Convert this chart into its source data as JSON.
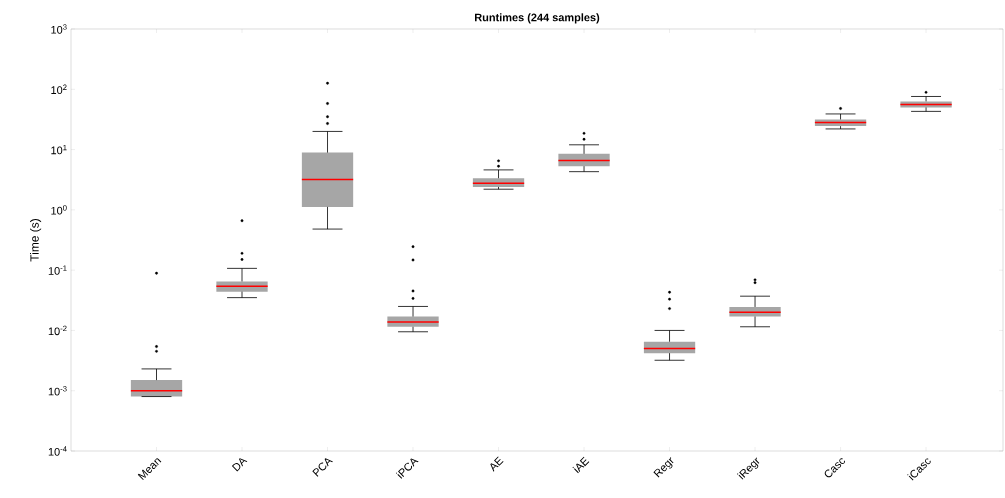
{
  "chart_data": {
    "type": "box",
    "title": "Runtimes (244 samples)",
    "ylabel": "Time (s)",
    "log": "y",
    "categories": [
      "Mean",
      "DA",
      "PCA",
      "iPCA",
      "AE",
      "iAE",
      "Regr",
      "iRegr",
      "Casc",
      "iCasc"
    ],
    "ylim": [
      0.0001,
      1000
    ],
    "yticks": [
      {
        "value": 0.0001,
        "label": "10$^{-4}$"
      },
      {
        "value": 0.001,
        "label": "10$^{-3}$"
      },
      {
        "value": 0.01,
        "label": "10$^{-2}$"
      },
      {
        "value": 0.1,
        "label": "10$^{-1}$"
      },
      {
        "value": 1,
        "label": "10$^{0}$"
      },
      {
        "value": 10,
        "label": "10$^{1}$"
      },
      {
        "value": 100,
        "label": "10$^{2}$"
      },
      {
        "value": 1000,
        "label": "10$^{3}$"
      }
    ],
    "series": [
      {
        "color": "#a6a6a6",
        "boxes": [
          {
            "low": 0.0008,
            "q1": 0.0008,
            "median": 0.001,
            "q3": 0.0015,
            "high": 0.0023,
            "outliers": [
              0.089,
              0.0054,
              0.0045
            ]
          },
          {
            "low": 0.035,
            "q1": 0.044,
            "median": 0.054,
            "q3": 0.065,
            "high": 0.107,
            "outliers": [
              0.66,
              0.19,
              0.15
            ]
          },
          {
            "low": 0.48,
            "q1": 1.12,
            "median": 3.2,
            "q3": 8.9,
            "high": 20,
            "outliers": [
              126,
              58,
              35,
              27
            ]
          },
          {
            "low": 0.0095,
            "q1": 0.0115,
            "median": 0.0138,
            "q3": 0.017,
            "high": 0.025,
            "outliers": [
              0.245,
              0.147,
              0.045,
              0.034
            ]
          },
          {
            "low": 2.2,
            "q1": 2.4,
            "median": 2.75,
            "q3": 3.35,
            "high": 4.6,
            "outliers": [
              6.5,
              5.3
            ]
          },
          {
            "low": 4.3,
            "q1": 5.3,
            "median": 6.6,
            "q3": 8.5,
            "high": 12,
            "outliers": [
              18.6,
              14.8
            ]
          },
          {
            "low": 0.0032,
            "q1": 0.0042,
            "median": 0.005,
            "q3": 0.0065,
            "high": 0.01,
            "outliers": [
              0.043,
              0.033,
              0.023
            ]
          },
          {
            "low": 0.0115,
            "q1": 0.017,
            "median": 0.02,
            "q3": 0.0245,
            "high": 0.037,
            "outliers": [
              0.069,
              0.062
            ]
          },
          {
            "low": 22,
            "q1": 24.5,
            "median": 28,
            "q3": 31.6,
            "high": 39,
            "outliers": [
              48
            ]
          },
          {
            "low": 43,
            "q1": 50,
            "median": 56,
            "q3": 63,
            "high": 76,
            "outliers": [
              89
            ]
          }
        ]
      }
    ]
  }
}
